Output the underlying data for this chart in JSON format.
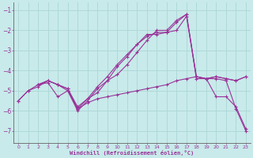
{
  "xlabel": "Windchill (Refroidissement éolien,°C)",
  "bg_color": "#c8eaea",
  "line_color": "#993399",
  "grid_color": "#b0d8d8",
  "x_ticks": [
    0,
    1,
    2,
    3,
    4,
    5,
    6,
    7,
    8,
    9,
    10,
    11,
    12,
    13,
    14,
    15,
    16,
    17,
    18,
    19,
    20,
    21,
    22,
    23
  ],
  "y_ticks": [
    -7,
    -6,
    -5,
    -4,
    -3,
    -2,
    -1
  ],
  "ylim": [
    -7.6,
    -0.6
  ],
  "xlim": [
    -0.5,
    23.5
  ],
  "series": [
    {
      "x": [
        0,
        1,
        2,
        3,
        4,
        5,
        6,
        7,
        8,
        9,
        10,
        11,
        12,
        13,
        14,
        15,
        16,
        17,
        18,
        19,
        20,
        21,
        22,
        23
      ],
      "y": [
        -5.5,
        -5.0,
        -4.8,
        -4.5,
        -4.7,
        -5.0,
        -5.9,
        -5.6,
        -5.4,
        -5.3,
        -5.2,
        -5.1,
        -5.0,
        -4.9,
        -4.8,
        -4.7,
        -4.5,
        -4.4,
        -4.3,
        -4.4,
        -5.3,
        -5.3,
        -5.8,
        -6.9
      ]
    },
    {
      "x": [
        0,
        1,
        2,
        3,
        4,
        5,
        6,
        7,
        8,
        9,
        10,
        11,
        12,
        13,
        14,
        15,
        16,
        17,
        18,
        19,
        20,
        21,
        22,
        23
      ],
      "y": [
        -5.5,
        -5.0,
        -4.7,
        -4.5,
        -4.7,
        -4.9,
        -5.9,
        -5.4,
        -5.1,
        -4.5,
        -3.8,
        -3.3,
        -2.7,
        -2.2,
        -2.2,
        -2.1,
        -1.6,
        -1.2,
        -4.4,
        -4.4,
        -4.4,
        -4.5,
        -5.9,
        -7.0
      ]
    },
    {
      "x": [
        2,
        3,
        4,
        5,
        6,
        7,
        8,
        9,
        10,
        11,
        12,
        13,
        14,
        15,
        16,
        17,
        18,
        19,
        20,
        21,
        22,
        23
      ],
      "y": [
        -4.7,
        -4.5,
        -4.7,
        -4.9,
        -5.8,
        -5.4,
        -4.8,
        -4.3,
        -3.7,
        -3.2,
        -2.7,
        -2.3,
        -2.1,
        -2.1,
        -2.0,
        -1.3,
        -4.3,
        -4.4,
        -4.3,
        -4.4,
        -4.5,
        -4.3
      ]
    },
    {
      "x": [
        2,
        3,
        4,
        5,
        6,
        7,
        8,
        9,
        10,
        11,
        12,
        13,
        14,
        15,
        16,
        17,
        18,
        19,
        20,
        21,
        22,
        23
      ],
      "y": [
        -4.7,
        -4.6,
        -5.3,
        -5.0,
        -6.0,
        -5.5,
        -4.9,
        -4.5,
        -4.2,
        -3.7,
        -3.1,
        -2.5,
        -2.0,
        -2.0,
        -1.5,
        -1.2,
        -4.3,
        -4.4,
        -4.3,
        -4.4,
        -4.5,
        -4.3
      ]
    }
  ]
}
